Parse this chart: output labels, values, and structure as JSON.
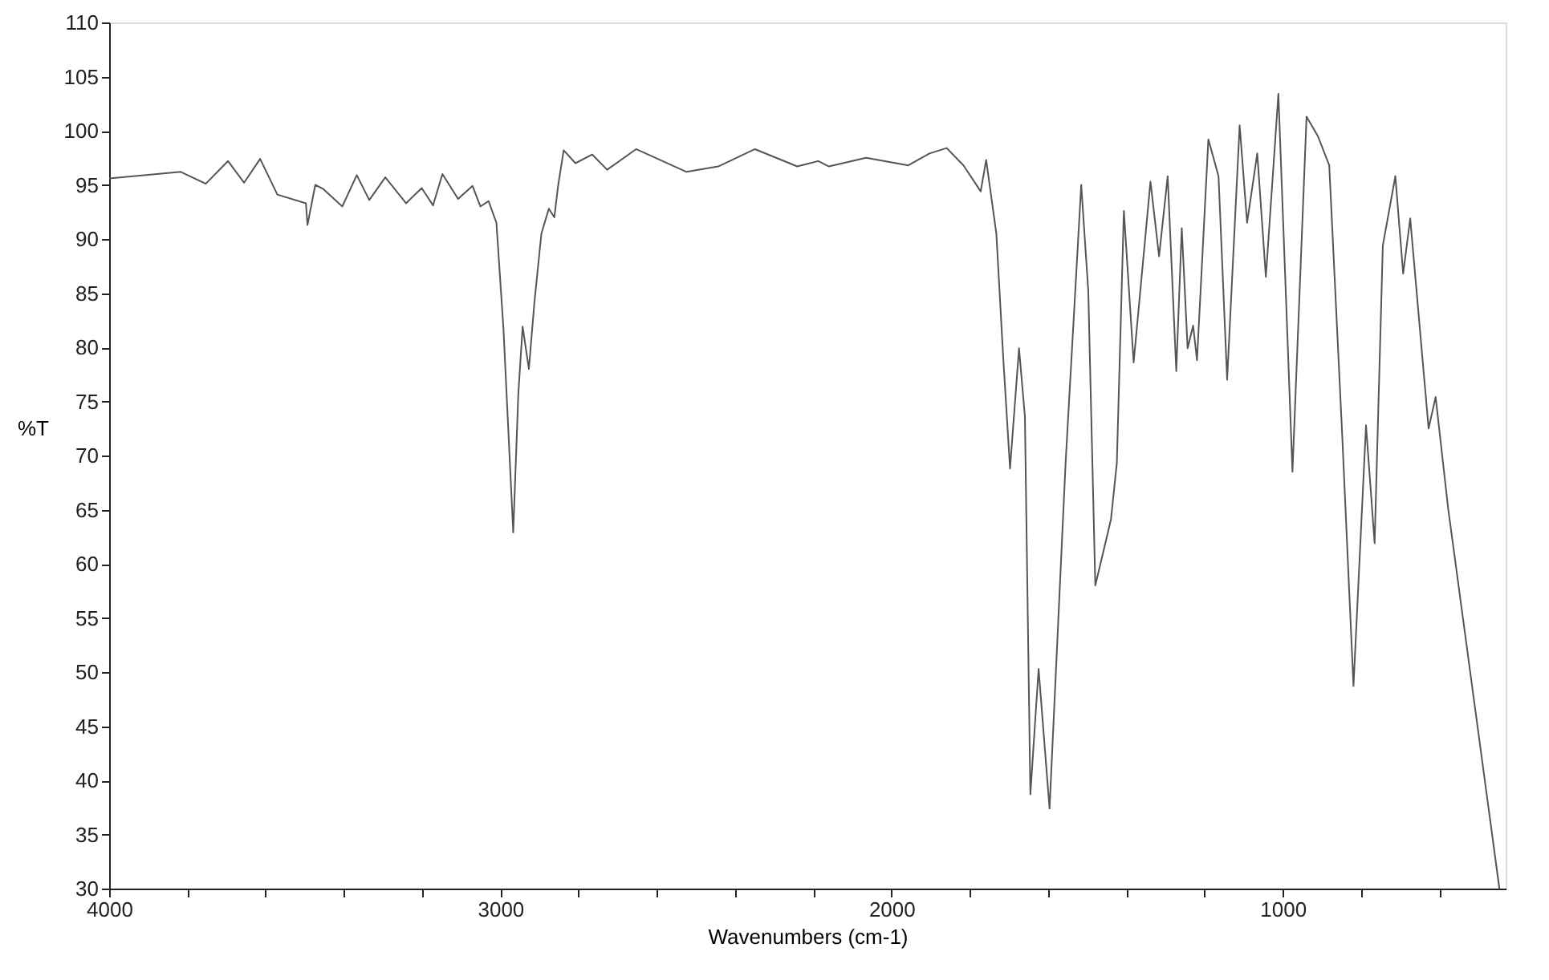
{
  "chart_data": {
    "type": "line",
    "xlabel": "Wavenumbers (cm-1)",
    "ylabel": "%T",
    "xlim": [
      4000,
      430
    ],
    "ylim": [
      30,
      110
    ],
    "xticks": [
      4000,
      {
        "value": 3800,
        "label": null
      },
      {
        "value": 3600,
        "label": null
      },
      {
        "value": 3400,
        "label": null
      },
      {
        "value": 3200,
        "label": null
      },
      3000,
      {
        "value": 2800,
        "label": null
      },
      {
        "value": 2600,
        "label": null
      },
      {
        "value": 2400,
        "label": null
      },
      {
        "value": 2200,
        "label": null
      },
      2000,
      {
        "value": 1800,
        "label": null
      },
      {
        "value": 1600,
        "label": null
      },
      {
        "value": 1400,
        "label": null
      },
      {
        "value": 1200,
        "label": null
      },
      1000,
      {
        "value": 800,
        "label": null
      },
      {
        "value": 600,
        "label": null
      }
    ],
    "yticks": [
      30,
      35,
      40,
      45,
      50,
      55,
      60,
      65,
      70,
      75,
      80,
      85,
      90,
      95,
      100,
      105,
      110
    ],
    "grid": false,
    "marker": "none",
    "line_style": "solid",
    "series": [
      {
        "color": "#555555",
        "x": [
          4000,
          3817,
          3753,
          3696,
          3655,
          3614,
          3570,
          3497,
          3493,
          3473,
          3452,
          3404,
          3367,
          3335,
          3294,
          3241,
          3201,
          3172,
          3148,
          3108,
          3071,
          3051,
          3030,
          3010,
          2992,
          2967,
          2954,
          2943,
          2927,
          2913,
          2895,
          2876,
          2862,
          2852,
          2838,
          2808,
          2765,
          2727,
          2653,
          2524,
          2443,
          2349,
          2241,
          2187,
          2160,
          2065,
          1957,
          1903,
          1859,
          1816,
          1772,
          1758,
          1732,
          1714,
          1697,
          1674,
          1659,
          1645,
          1624,
          1596,
          1555,
          1515,
          1497,
          1479,
          1439,
          1424,
          1406,
          1381,
          1338,
          1316,
          1294,
          1272,
          1258,
          1243,
          1229,
          1219,
          1190,
          1164,
          1142,
          1110,
          1091,
          1065,
          1043,
          1011,
          975,
          939,
          910,
          881,
          848,
          819,
          787,
          765,
          744,
          712,
          692,
          674,
          627,
          609,
          577,
          446
        ],
        "values": [
          95.6,
          96.2,
          95.1,
          97.2,
          95.2,
          97.4,
          94.1,
          93.3,
          91.3,
          95.0,
          94.6,
          93.0,
          95.9,
          93.6,
          95.7,
          93.3,
          94.7,
          93.1,
          96.0,
          93.7,
          94.9,
          93.0,
          93.5,
          91.5,
          81.7,
          62.9,
          75.7,
          81.9,
          78.0,
          84.1,
          90.5,
          92.8,
          92.0,
          95.0,
          98.2,
          97.0,
          97.8,
          96.4,
          98.3,
          96.2,
          96.7,
          98.3,
          96.7,
          97.2,
          96.7,
          97.5,
          96.8,
          97.9,
          98.4,
          96.8,
          94.4,
          97.3,
          90.5,
          78.8,
          68.8,
          79.9,
          73.6,
          38.7,
          50.3,
          37.4,
          69.3,
          95.0,
          85.2,
          58.0,
          64.1,
          69.3,
          92.6,
          78.6,
          95.3,
          88.4,
          95.8,
          77.8,
          91.0,
          79.9,
          82.0,
          78.8,
          99.2,
          95.8,
          77.0,
          100.5,
          91.5,
          97.9,
          86.5,
          103.4,
          68.5,
          101.3,
          99.5,
          96.8,
          72.0,
          48.7,
          72.8,
          61.9,
          89.4,
          95.8,
          86.8,
          91.9,
          72.5,
          75.4,
          65.1,
          30.0
        ]
      }
    ]
  }
}
